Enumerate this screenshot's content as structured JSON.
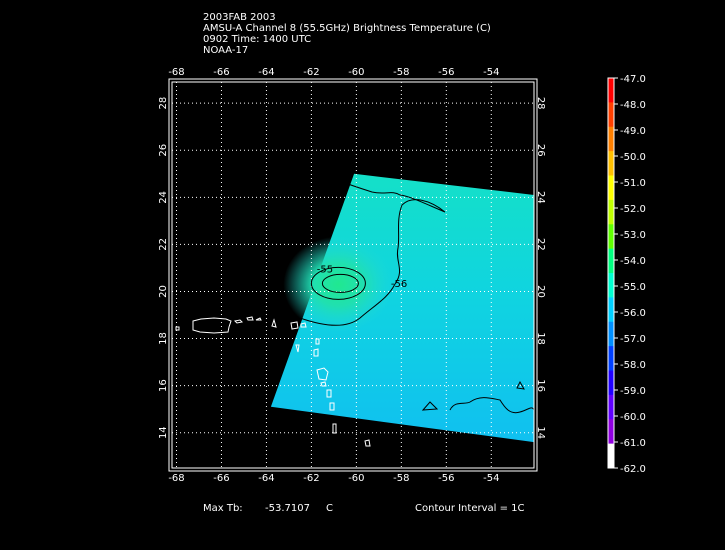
{
  "title_lines": [
    "2003FAB 2003",
    "AMSU-A Channel 8 (55.5GHz) Brightness Temperature (C)",
    "0902 Time: 1400 UTC",
    "NOAA-17"
  ],
  "footer": {
    "max_tb_label": "Max Tb:",
    "max_tb_value": "-53.7107",
    "max_tb_unit": "C",
    "contour_interval": "Contour Interval = 1C"
  },
  "colors": {
    "background": "#000000",
    "frame": "#ffffff",
    "grid": "#ffffff",
    "coastline": "#ffffff",
    "contour": "#000000"
  },
  "chart_data": {
    "type": "heatmap",
    "x_ticks": [
      -68,
      -66,
      -64,
      -62,
      -60,
      -58,
      -56,
      -54
    ],
    "y_ticks": [
      14,
      16,
      18,
      20,
      22,
      24,
      26,
      28
    ],
    "xlim": [
      -68.2,
      -52.1
    ],
    "ylim": [
      12.5,
      28.9
    ],
    "grid": true,
    "swath_corners_lonlat": [
      [
        -60.1,
        25.0
      ],
      [
        -52.1,
        24.1
      ],
      [
        -52.1,
        13.6
      ],
      [
        -63.8,
        15.1
      ]
    ],
    "contours": [
      {
        "label": "-55",
        "level": -55,
        "label_lon": -61.4,
        "label_lat": 20.8
      },
      {
        "label": "-56",
        "level": -56,
        "label_lon": -58.1,
        "label_lat": 20.2
      }
    ],
    "max_tb": -53.7107,
    "colorbar": {
      "labels": [
        "-47.0",
        "-48.0",
        "-49.0",
        "-50.0",
        "-51.0",
        "-52.0",
        "-53.0",
        "-54.0",
        "-55.0",
        "-56.0",
        "-57.0",
        "-58.0",
        "-59.0",
        "-60.0",
        "-61.0",
        "-62.0"
      ],
      "min": -62.0,
      "max": -47.0,
      "colors": [
        "#ff0000",
        "#ff4000",
        "#ff8000",
        "#ffc000",
        "#ffff00",
        "#c0ff00",
        "#60ff00",
        "#00ff80",
        "#00ffd0",
        "#00d0ff",
        "#0090ff",
        "#0040ff",
        "#2000ff",
        "#6000ff",
        "#9000e0",
        "#ffffff"
      ]
    }
  }
}
